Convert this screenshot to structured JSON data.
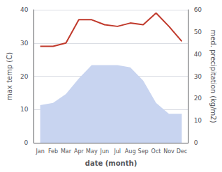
{
  "chart_data": {
    "type": "line",
    "xlabel": "date (month)",
    "ylabel": "max temp (C)",
    "y2label": "med. precipitation (kg/m2)",
    "categories": [
      "Jan",
      "Feb",
      "Mar",
      "Apr",
      "May",
      "Jun",
      "Jul",
      "Aug",
      "Sep",
      "Oct",
      "Nov",
      "Dec"
    ],
    "series": [
      {
        "type": "area",
        "axis": "y2",
        "color": "#c8d4f0",
        "values": [
          17,
          18,
          22,
          29,
          35,
          35,
          35,
          34,
          28,
          18,
          13,
          13
        ]
      },
      {
        "type": "line",
        "color": "#c0392b",
        "values": [
          29,
          29,
          30,
          37,
          37,
          35.5,
          35,
          36,
          35.5,
          39,
          35,
          30.5
        ]
      }
    ],
    "ylim": [
      0,
      40
    ],
    "yticks": [
      0,
      10,
      20,
      30,
      40
    ],
    "y2lim": [
      0,
      60
    ],
    "y2ticks": [
      0,
      10,
      20,
      30,
      40,
      50,
      60
    ],
    "grid": true
  }
}
